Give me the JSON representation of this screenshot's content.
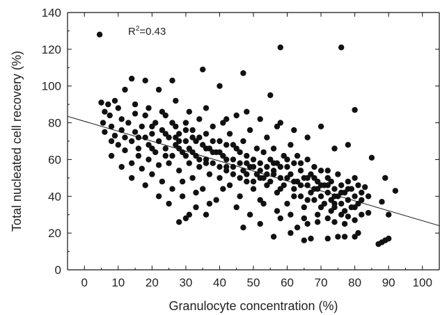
{
  "chart_data": {
    "type": "scatter",
    "xlabel": "Granulocyte concentration (%)",
    "ylabel": "Total nucleated cell recovery (%)",
    "xlim": [
      -5,
      105
    ],
    "ylim": [
      0,
      140
    ],
    "x_ticks": [
      0,
      10,
      20,
      30,
      40,
      50,
      60,
      70,
      80,
      90,
      100
    ],
    "y_ticks": [
      0,
      20,
      40,
      60,
      80,
      100,
      120,
      140
    ],
    "grid": false,
    "legend": "none",
    "annotation": {
      "base": "R",
      "sup": "2",
      "rest": "=0.43"
    },
    "trendline": {
      "x": [
        -5,
        105
      ],
      "y": [
        83.5,
        24
      ]
    },
    "point_color": "#111111",
    "points": [
      [
        4.5,
        128
      ],
      [
        5,
        91
      ],
      [
        6,
        86
      ],
      [
        7,
        90
      ],
      [
        5.5,
        80
      ],
      [
        7.5,
        84
      ],
      [
        8,
        78
      ],
      [
        9,
        92
      ],
      [
        10,
        88
      ],
      [
        11,
        82
      ],
      [
        12,
        98
      ],
      [
        14,
        104
      ],
      [
        18,
        103
      ],
      [
        22,
        98
      ],
      [
        26,
        103
      ],
      [
        27,
        92
      ],
      [
        35,
        109
      ],
      [
        40,
        100
      ],
      [
        47,
        107
      ],
      [
        55,
        95
      ],
      [
        58,
        121
      ],
      [
        76,
        121
      ],
      [
        80,
        87
      ],
      [
        85,
        61
      ],
      [
        83,
        45
      ],
      [
        88,
        37
      ],
      [
        92,
        43
      ],
      [
        89,
        50
      ],
      [
        90,
        30
      ],
      [
        87,
        14
      ],
      [
        88,
        15
      ],
      [
        89,
        16
      ],
      [
        90,
        17
      ],
      [
        56,
        18
      ],
      [
        61,
        20
      ],
      [
        65,
        16
      ],
      [
        67,
        17
      ],
      [
        72,
        17
      ],
      [
        75,
        18
      ],
      [
        77,
        18
      ],
      [
        80,
        18
      ],
      [
        81,
        20
      ],
      [
        28,
        26
      ],
      [
        30,
        28
      ],
      [
        31,
        30
      ],
      [
        33,
        34
      ],
      [
        36,
        30
      ],
      [
        47,
        23
      ],
      [
        52,
        25
      ],
      [
        58,
        28
      ],
      [
        63,
        23
      ],
      [
        66,
        25
      ],
      [
        69,
        30
      ],
      [
        72,
        28
      ],
      [
        74,
        26
      ],
      [
        77,
        25
      ],
      [
        78,
        29
      ],
      [
        80,
        27
      ],
      [
        82,
        30
      ],
      [
        84,
        31
      ],
      [
        6,
        75
      ],
      [
        8,
        70
      ],
      [
        9,
        73
      ],
      [
        10,
        68
      ],
      [
        11,
        76
      ],
      [
        12,
        72
      ],
      [
        12,
        65
      ],
      [
        13,
        80
      ],
      [
        14,
        70
      ],
      [
        14,
        58
      ],
      [
        15,
        75
      ],
      [
        15,
        85
      ],
      [
        16,
        66
      ],
      [
        16,
        62
      ],
      [
        17,
        78
      ],
      [
        17,
        55
      ],
      [
        18,
        72
      ],
      [
        18,
        84
      ],
      [
        19,
        68
      ],
      [
        19,
        60
      ],
      [
        20,
        74
      ],
      [
        20,
        52
      ],
      [
        21,
        80
      ],
      [
        21,
        64
      ],
      [
        22,
        70
      ],
      [
        22,
        57
      ],
      [
        23,
        76
      ],
      [
        23,
        48
      ],
      [
        24,
        66
      ],
      [
        24,
        84
      ],
      [
        25,
        72
      ],
      [
        25,
        58
      ],
      [
        26,
        62
      ],
      [
        26,
        44
      ],
      [
        27,
        78
      ],
      [
        27,
        68
      ],
      [
        28,
        54
      ],
      [
        28,
        74
      ],
      [
        29,
        64
      ],
      [
        29,
        40
      ],
      [
        30,
        70
      ],
      [
        30,
        80
      ],
      [
        31,
        58
      ],
      [
        31,
        66
      ],
      [
        32,
        76
      ],
      [
        32,
        50
      ],
      [
        33,
        62
      ],
      [
        33,
        70
      ],
      [
        34,
        56
      ],
      [
        34,
        82
      ],
      [
        35,
        68
      ],
      [
        35,
        44
      ],
      [
        36,
        74
      ],
      [
        36,
        60
      ],
      [
        37,
        52
      ],
      [
        37,
        66
      ],
      [
        38,
        78
      ],
      [
        38,
        58
      ],
      [
        39,
        64
      ],
      [
        39,
        38
      ],
      [
        40,
        70
      ],
      [
        40,
        50
      ],
      [
        41,
        62
      ],
      [
        41,
        80
      ],
      [
        42,
        56
      ],
      [
        42,
        68
      ],
      [
        43,
        46
      ],
      [
        43,
        74
      ],
      [
        44,
        60
      ],
      [
        44,
        52
      ],
      [
        45,
        66
      ],
      [
        45,
        84
      ],
      [
        46,
        58
      ],
      [
        46,
        40
      ],
      [
        47,
        54
      ],
      [
        47,
        70
      ],
      [
        48,
        62
      ],
      [
        48,
        48
      ],
      [
        49,
        56
      ],
      [
        49,
        76
      ],
      [
        50,
        60
      ],
      [
        50,
        44
      ],
      [
        51,
        52
      ],
      [
        51,
        66
      ],
      [
        52,
        58
      ],
      [
        52,
        38
      ],
      [
        53,
        64
      ],
      [
        53,
        50
      ],
      [
        54,
        56
      ],
      [
        54,
        72
      ],
      [
        55,
        48
      ],
      [
        55,
        60
      ],
      [
        56,
        54
      ],
      [
        56,
        66
      ],
      [
        57,
        42
      ],
      [
        57,
        58
      ],
      [
        58,
        50
      ],
      [
        58,
        80
      ],
      [
        59,
        62
      ],
      [
        59,
        46
      ],
      [
        60,
        56
      ],
      [
        60,
        36
      ],
      [
        61,
        52
      ],
      [
        61,
        68
      ],
      [
        62,
        44
      ],
      [
        62,
        58
      ],
      [
        63,
        48
      ],
      [
        63,
        62
      ],
      [
        64,
        40
      ],
      [
        64,
        54
      ],
      [
        65,
        50
      ],
      [
        65,
        34
      ],
      [
        66,
        46
      ],
      [
        66,
        60
      ],
      [
        67,
        42
      ],
      [
        67,
        52
      ],
      [
        68,
        38
      ],
      [
        68,
        56
      ],
      [
        69,
        48
      ],
      [
        69,
        44
      ],
      [
        70,
        40
      ],
      [
        70,
        54
      ],
      [
        71,
        46
      ],
      [
        71,
        36
      ],
      [
        72,
        50
      ],
      [
        72,
        42
      ],
      [
        73,
        38
      ],
      [
        73,
        48
      ],
      [
        74,
        44
      ],
      [
        74,
        34
      ],
      [
        75,
        40
      ],
      [
        75,
        52
      ],
      [
        76,
        36
      ],
      [
        76,
        46
      ],
      [
        77,
        42
      ],
      [
        77,
        32
      ],
      [
        78,
        48
      ],
      [
        78,
        38
      ],
      [
        79,
        44
      ],
      [
        79,
        34
      ],
      [
        80,
        40
      ],
      [
        80,
        50
      ],
      [
        81,
        36
      ],
      [
        81,
        46
      ],
      [
        82,
        38
      ],
      [
        82,
        42
      ],
      [
        15,
        90
      ],
      [
        19,
        88
      ],
      [
        23,
        86
      ],
      [
        27,
        72
      ],
      [
        31,
        86
      ],
      [
        36,
        88
      ],
      [
        42,
        82
      ],
      [
        48,
        86
      ],
      [
        52,
        82
      ],
      [
        57,
        78
      ],
      [
        62,
        76
      ],
      [
        66,
        72
      ],
      [
        70,
        78
      ],
      [
        74,
        66
      ],
      [
        78,
        68
      ],
      [
        8,
        62
      ],
      [
        11,
        56
      ],
      [
        14,
        50
      ],
      [
        18,
        46
      ],
      [
        22,
        40
      ],
      [
        25,
        36
      ],
      [
        29,
        48
      ],
      [
        33,
        42
      ],
      [
        37,
        36
      ],
      [
        41,
        44
      ],
      [
        45,
        34
      ],
      [
        49,
        30
      ],
      [
        53,
        36
      ],
      [
        57,
        32
      ],
      [
        61,
        30
      ],
      [
        65,
        28
      ],
      [
        69,
        26
      ],
      [
        73,
        32
      ],
      [
        76,
        30
      ],
      [
        20,
        66
      ],
      [
        24,
        62
      ],
      [
        28,
        66
      ],
      [
        32,
        64
      ],
      [
        36,
        66
      ],
      [
        40,
        64
      ],
      [
        44,
        68
      ],
      [
        48,
        58
      ],
      [
        52,
        54
      ],
      [
        56,
        52
      ],
      [
        60,
        50
      ],
      [
        64,
        46
      ],
      [
        68,
        44
      ],
      [
        72,
        46
      ],
      [
        76,
        42
      ],
      [
        30,
        62
      ],
      [
        34,
        60
      ],
      [
        38,
        70
      ],
      [
        42,
        60
      ],
      [
        46,
        64
      ],
      [
        50,
        56
      ],
      [
        54,
        52
      ],
      [
        58,
        56
      ],
      [
        62,
        48
      ],
      [
        66,
        50
      ],
      [
        70,
        46
      ],
      [
        74,
        40
      ],
      [
        78,
        44
      ],
      [
        16,
        72
      ],
      [
        20,
        78
      ],
      [
        24,
        74
      ],
      [
        28,
        70
      ],
      [
        32,
        72
      ],
      [
        36,
        58
      ],
      [
        40,
        56
      ],
      [
        44,
        56
      ],
      [
        48,
        52
      ],
      [
        52,
        50
      ],
      [
        56,
        58
      ],
      [
        60,
        60
      ],
      [
        64,
        58
      ],
      [
        68,
        50
      ],
      [
        72,
        54
      ],
      [
        26,
        80
      ],
      [
        30,
        76
      ],
      [
        34,
        72
      ],
      [
        38,
        64
      ],
      [
        42,
        54
      ],
      [
        46,
        50
      ],
      [
        50,
        48
      ],
      [
        54,
        46
      ],
      [
        58,
        44
      ],
      [
        62,
        40
      ],
      [
        66,
        38
      ],
      [
        70,
        34
      ],
      [
        74,
        36
      ],
      [
        80,
        34
      ],
      [
        84,
        40
      ]
    ]
  }
}
